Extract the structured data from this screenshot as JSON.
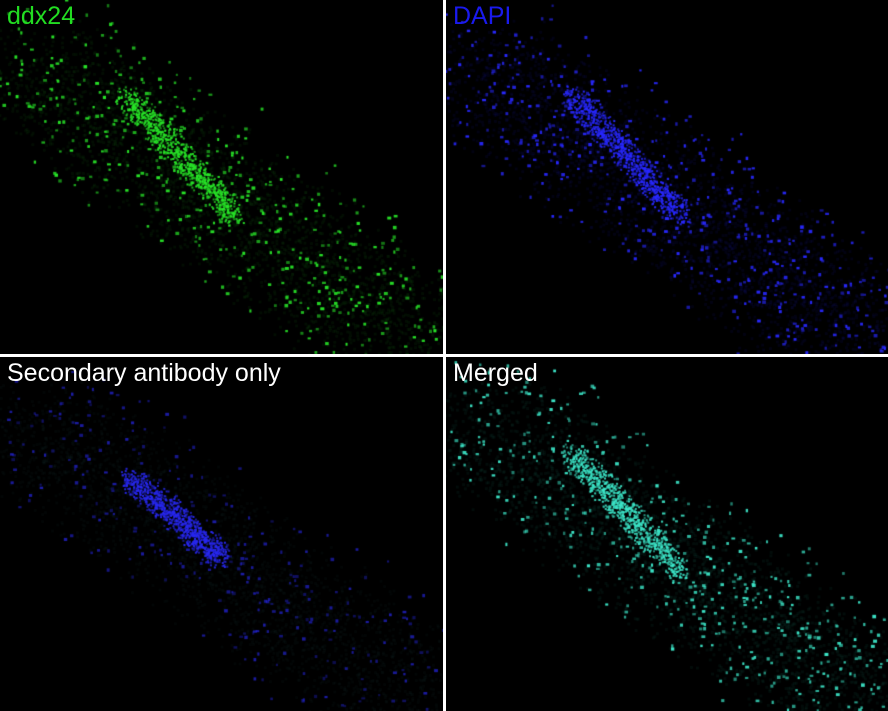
{
  "panels": [
    {
      "label": "ddx24",
      "label_color": "#22dd22",
      "channel": "green"
    },
    {
      "label": "DAPI",
      "label_color": "#1a1aee",
      "channel": "blue"
    },
    {
      "label": "Secondary antibody only",
      "label_color": "#ffffff",
      "channel": "blue-dim-green"
    },
    {
      "label": "Merged",
      "label_color": "#ffffff",
      "channel": "cyan"
    }
  ],
  "colors": {
    "background": "#000000",
    "divider": "#ffffff"
  }
}
